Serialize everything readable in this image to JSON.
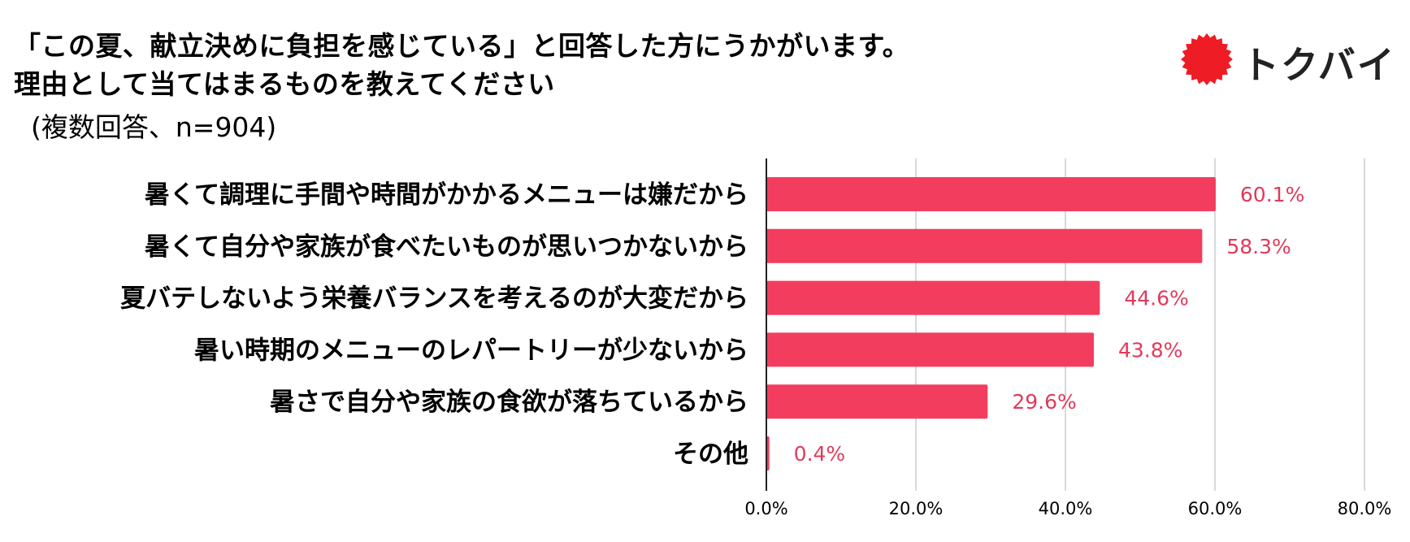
{
  "title_lines": [
    "「この夏、献立決めに負担を感じている」と回答した方にうかがいます。",
    "理由として当てはまるものを教えてください"
  ],
  "subtitle": "(複数回答、n=904)",
  "logo": {
    "text": "トクバイ",
    "icon": "red-sun-badge-icon",
    "color": "#ee1c25"
  },
  "colors": {
    "bar": "#f23d5f",
    "value_label": "#e03a5a",
    "grid": "#cccccc",
    "axis": "#222222"
  },
  "chart_data": {
    "type": "bar",
    "orientation": "horizontal",
    "categories": [
      "暑くて調理に手間や時間がかかるメニューは嫌だから",
      "暑くて自分や家族が食べたいものが思いつかないから",
      "夏バテしないよう栄養バランスを考えるのが大変だから",
      "暑い時期のメニューのレパートリーが少ないから",
      "暑さで自分や家族の食欲が落ちているから",
      "その他"
    ],
    "values": [
      60.1,
      58.3,
      44.6,
      43.8,
      29.6,
      0.4
    ],
    "value_labels": [
      "60.1%",
      "58.3%",
      "44.6%",
      "43.8%",
      "29.6%",
      "0.4%"
    ],
    "xlim": [
      0,
      80
    ],
    "xticks": [
      0,
      20,
      40,
      60,
      80
    ],
    "xtick_labels": [
      "0.0%",
      "20.0%",
      "40.0%",
      "60.0%",
      "80.0%"
    ],
    "grid": true,
    "legend": "none"
  }
}
